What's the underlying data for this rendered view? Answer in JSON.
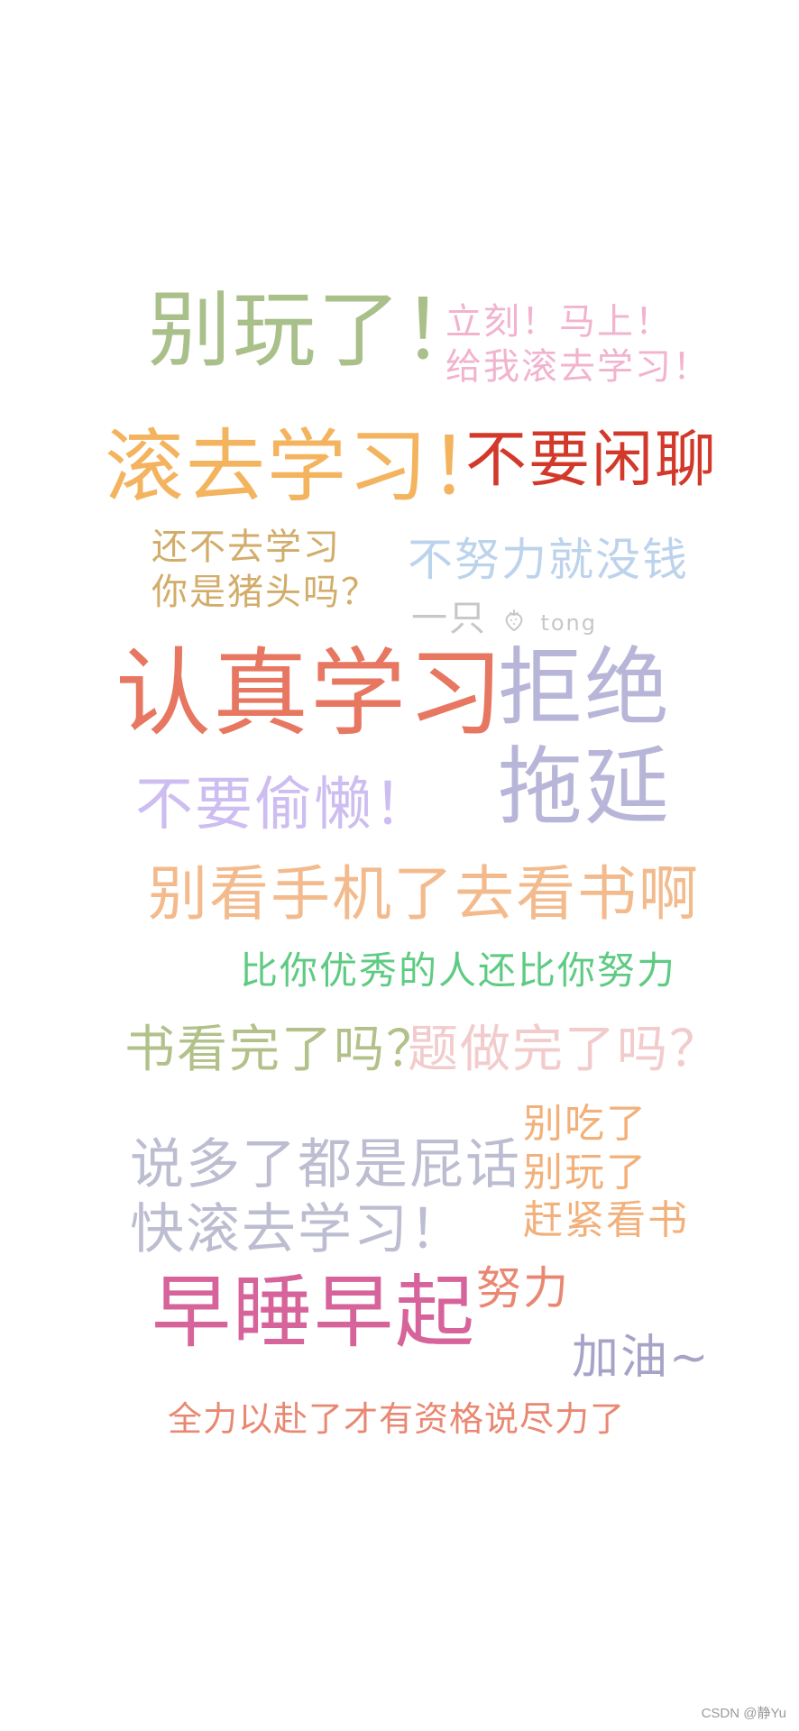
{
  "colors": {
    "green": "#a9c08a",
    "pink": "#f2b3cf",
    "orange": "#f4b45f",
    "red": "#d2392b",
    "mustard": "#d2ad6a",
    "lightblue": "#bcd3ec",
    "coral": "#e77761",
    "lavender": "#b8b6d8",
    "lilac": "#cdbdf0",
    "peach": "#f3bb8d",
    "mint": "#5ecb83",
    "sage": "#b2c18a",
    "blush": "#f2cccc",
    "gray": "#bdbdd2",
    "apricot": "#f2b07a",
    "magenta": "#d6639a",
    "salmon": "#e98872",
    "slate": "#a6a3c8"
  },
  "phrases": {
    "p1": "别玩了！",
    "p2a": "立刻！马上！",
    "p2b": "给我滚去学习！",
    "p3": "滚去学习！",
    "p4": "不要闲聊",
    "p5a": "还不去学习",
    "p5b": "你是猪头吗？",
    "p6": "不努力就没钱",
    "sig_prefix": "一只",
    "sig_name": "tong",
    "p7": "认真学习",
    "p8a": "拒绝",
    "p8b": "拖延",
    "p9": "不要偷懒！",
    "p10": "别看手机了去看书啊",
    "p11": "比你优秀的人还比你努力",
    "p12": "书看完了吗？",
    "p13": "题做完了吗？",
    "p14a": "说多了都是屁话",
    "p14b": "快滚去学习！",
    "p15a": "别吃了",
    "p15b": "别玩了",
    "p15c": "赶紧看书",
    "p16": "早睡早起",
    "p17": "努力",
    "p18": "加油~",
    "p19": "全力以赴了才有资格说尽力了"
  },
  "footer": {
    "watermark": "CSDN @静Yu"
  }
}
